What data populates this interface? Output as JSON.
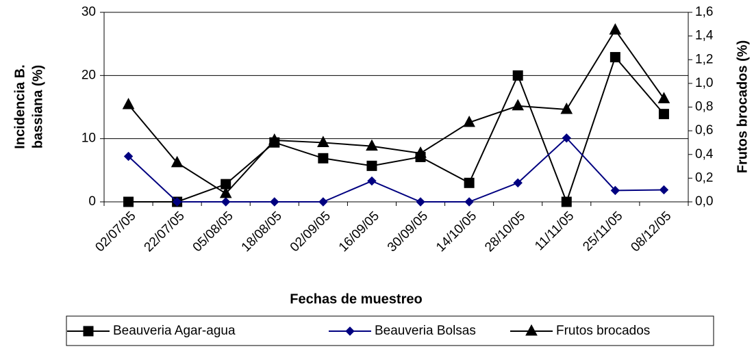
{
  "chart_data": {
    "type": "line",
    "xlabel": "Fechas de muestreo",
    "ylabel": [
      "Incidencia B.",
      "bassiana (%)"
    ],
    "y2label": "Frutos brocados (%)",
    "categories": [
      "02/07/05",
      "22/07/05",
      "05/08/05",
      "18/08/05",
      "02/09/05",
      "16/09/05",
      "30/09/05",
      "14/10/05",
      "28/10/05",
      "11/11/05",
      "25/11/05",
      "08/12/05"
    ],
    "series": [
      {
        "name": "Beauveria Agar-agua",
        "color": "#000000",
        "marker": "square",
        "values": [
          0,
          0,
          2.8,
          9.4,
          6.9,
          5.7,
          7.1,
          3.0,
          20,
          0,
          22.9,
          13.9
        ]
      },
      {
        "name": "Beauveria Bolsas",
        "color": "#000080",
        "marker": "diamond",
        "values": [
          7.2,
          0,
          0,
          0,
          0,
          3.3,
          0,
          0,
          3.0,
          10.1,
          1.8,
          1.9
        ]
      },
      {
        "name": "Frutos brocados",
        "color": "#000000",
        "marker": "triangle",
        "axis": "y2",
        "values": [
          0.82,
          0.33,
          0.07,
          0.52,
          0.5,
          0.47,
          0.41,
          0.67,
          0.81,
          0.78,
          1.45,
          0.87
        ]
      }
    ],
    "ylim": [
      0,
      30
    ],
    "yticks": [
      0,
      10,
      20,
      30
    ],
    "y2lim": [
      0,
      1.6
    ],
    "y2ticks": [
      {
        "value": 0,
        "label": "0,0"
      },
      {
        "value": 0.2,
        "label": "0,2"
      },
      {
        "value": 0.4,
        "label": "0,4"
      },
      {
        "value": 0.6,
        "label": "0,6"
      },
      {
        "value": 0.8,
        "label": "0,8"
      },
      {
        "value": 1.0,
        "label": "1,0"
      },
      {
        "value": 1.2,
        "label": "1,2"
      },
      {
        "value": 1.4,
        "label": "1,4"
      },
      {
        "value": 1.6,
        "label": "1,6"
      }
    ],
    "grid": true,
    "legend": "bottom"
  }
}
